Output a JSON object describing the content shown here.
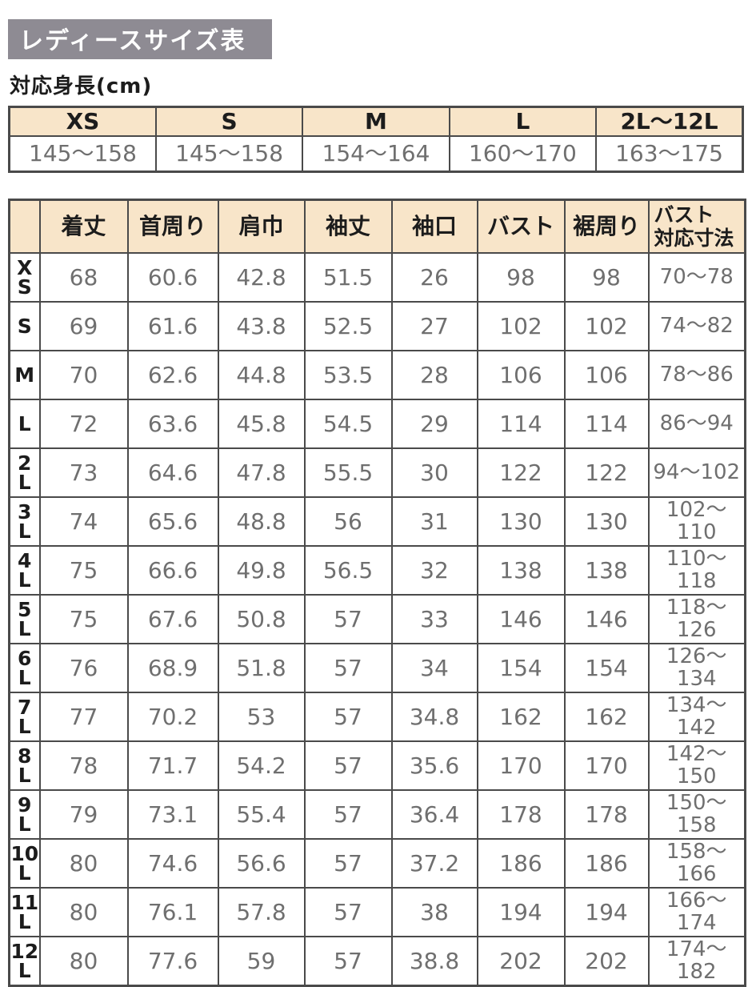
{
  "page": {
    "title": "レディースサイズ表",
    "height_section_label": "対応身長(cm)"
  },
  "height_table": {
    "columns": [
      "XS",
      "S",
      "M",
      "L",
      "2L〜12L"
    ],
    "values": [
      "145〜158",
      "145〜158",
      "154〜164",
      "160〜170",
      "163〜175"
    ]
  },
  "size_table": {
    "columns": [
      "着丈",
      "首周り",
      "肩巾",
      "袖丈",
      "袖口",
      "バスト",
      "裾周り",
      "バスト\n対応寸法"
    ],
    "rows": [
      {
        "size": "XS",
        "values": [
          "68",
          "60.6",
          "42.8",
          "51.5",
          "26",
          "98",
          "98",
          "70〜78"
        ]
      },
      {
        "size": "S",
        "values": [
          "69",
          "61.6",
          "43.8",
          "52.5",
          "27",
          "102",
          "102",
          "74〜82"
        ]
      },
      {
        "size": "M",
        "values": [
          "70",
          "62.6",
          "44.8",
          "53.5",
          "28",
          "106",
          "106",
          "78〜86"
        ]
      },
      {
        "size": "L",
        "values": [
          "72",
          "63.6",
          "45.8",
          "54.5",
          "29",
          "114",
          "114",
          "86〜94"
        ]
      },
      {
        "size": "2L",
        "values": [
          "73",
          "64.6",
          "47.8",
          "55.5",
          "30",
          "122",
          "122",
          "94〜102"
        ]
      },
      {
        "size": "3L",
        "values": [
          "74",
          "65.6",
          "48.8",
          "56",
          "31",
          "130",
          "130",
          "102〜110"
        ]
      },
      {
        "size": "4L",
        "values": [
          "75",
          "66.6",
          "49.8",
          "56.5",
          "32",
          "138",
          "138",
          "110〜118"
        ]
      },
      {
        "size": "5L",
        "values": [
          "75",
          "67.6",
          "50.8",
          "57",
          "33",
          "146",
          "146",
          "118〜126"
        ]
      },
      {
        "size": "6L",
        "values": [
          "76",
          "68.9",
          "51.8",
          "57",
          "34",
          "154",
          "154",
          "126〜134"
        ]
      },
      {
        "size": "7L",
        "values": [
          "77",
          "70.2",
          "53",
          "57",
          "34.8",
          "162",
          "162",
          "134〜142"
        ]
      },
      {
        "size": "8L",
        "values": [
          "78",
          "71.7",
          "54.2",
          "57",
          "35.6",
          "170",
          "170",
          "142〜150"
        ]
      },
      {
        "size": "9L",
        "values": [
          "79",
          "73.1",
          "55.4",
          "57",
          "36.4",
          "178",
          "178",
          "150〜158"
        ]
      },
      {
        "size": "10L",
        "values": [
          "80",
          "74.6",
          "56.6",
          "57",
          "37.2",
          "186",
          "186",
          "158〜166"
        ]
      },
      {
        "size": "11L",
        "values": [
          "80",
          "76.1",
          "57.8",
          "57",
          "38",
          "194",
          "194",
          "166〜174"
        ]
      },
      {
        "size": "12L",
        "values": [
          "80",
          "77.6",
          "59",
          "57",
          "38.8",
          "202",
          "202",
          "174〜182"
        ]
      }
    ]
  },
  "colors": {
    "header_bg": "#f8e5c9",
    "title_bg": "#8e8b93",
    "border": "#4a4a4a",
    "value_text": "#6f6f6f"
  }
}
